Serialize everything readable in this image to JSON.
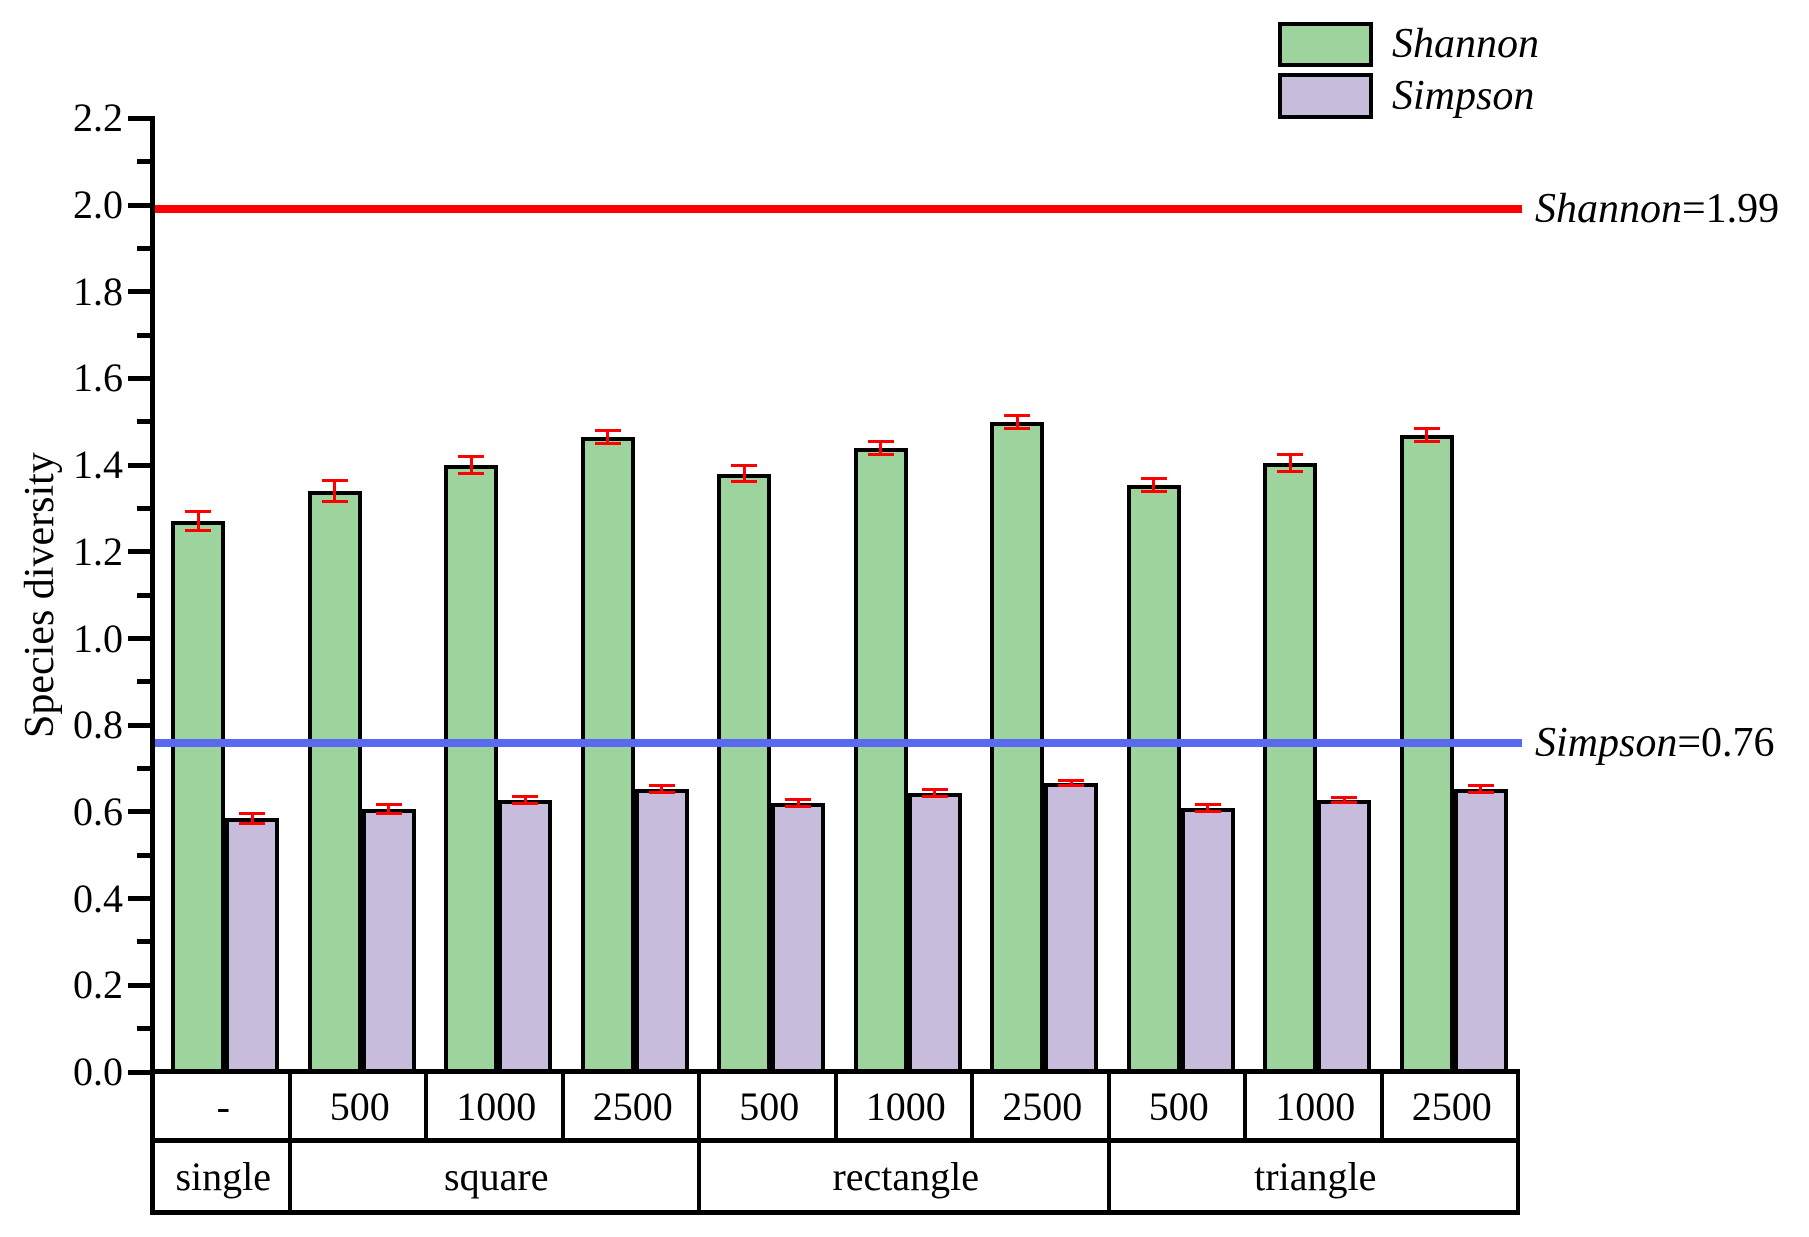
{
  "figure": {
    "background": "#ffffff",
    "axis_color": "#000000"
  },
  "legend": {
    "items": [
      {
        "label": "Shannon",
        "color": "#9DD49D"
      },
      {
        "label": "Simpson",
        "color": "#C7BCDC"
      }
    ]
  },
  "chart_data": {
    "type": "bar",
    "title": "",
    "xlabel": "",
    "ylabel": "Species diversity",
    "ylim": [
      0.0,
      2.2
    ],
    "ytick_step": 0.2,
    "yminor_step": 0.1,
    "grid": false,
    "legend_position": "top-right",
    "categories": [
      "-",
      "500",
      "1000",
      "2500",
      "500",
      "1000",
      "2500",
      "500",
      "1000",
      "2500"
    ],
    "groups": [
      {
        "label": "single",
        "span": 1
      },
      {
        "label": "square",
        "span": 3
      },
      {
        "label": "rectangle",
        "span": 3
      },
      {
        "label": "triangle",
        "span": 3
      }
    ],
    "series": [
      {
        "name": "Shannon",
        "color": "#9DD49D",
        "values": [
          1.27,
          1.34,
          1.4,
          1.465,
          1.38,
          1.44,
          1.5,
          1.355,
          1.405,
          1.47
        ],
        "errors": [
          0.022,
          0.025,
          0.02,
          0.015,
          0.018,
          0.015,
          0.015,
          0.015,
          0.02,
          0.015
        ]
      },
      {
        "name": "Simpson",
        "color": "#C7BCDC",
        "values": [
          0.585,
          0.607,
          0.627,
          0.653,
          0.62,
          0.643,
          0.667,
          0.61,
          0.628,
          0.653
        ],
        "errors": [
          0.012,
          0.01,
          0.008,
          0.008,
          0.008,
          0.008,
          0.006,
          0.008,
          0.006,
          0.008
        ]
      }
    ],
    "error_bar_color": "#FF0000",
    "reference_lines": [
      {
        "name": "Shannon",
        "value": 1.99,
        "value_text": "1.99",
        "color": "#FF0000"
      },
      {
        "name": "Simpson",
        "value": 0.76,
        "value_text": "0.76",
        "color": "#5A6AEE"
      }
    ]
  }
}
